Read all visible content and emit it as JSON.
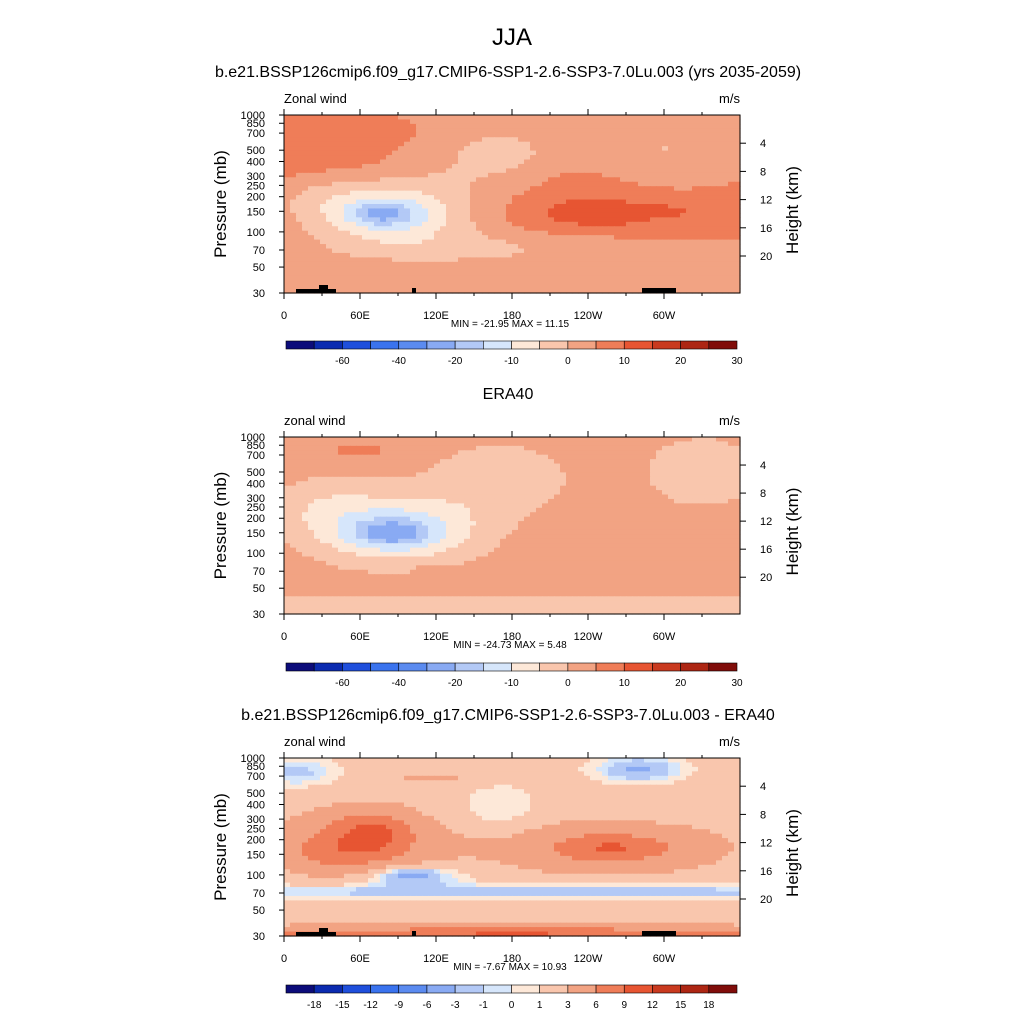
{
  "figure": {
    "title": "JJA",
    "colors": {
      "abs": [
        "#0c0c7a",
        "#0b2bb0",
        "#1f4fdc",
        "#3a73ee",
        "#5b8bf0",
        "#89aaf3",
        "#b3c9f6",
        "#d6e6fb",
        "#fde8d8",
        "#f9c6ad",
        "#f2a383",
        "#ef7d58",
        "#e75532",
        "#c93a1f",
        "#ad2613",
        "#800d0a"
      ],
      "diff": [
        "#0c0c7a",
        "#0b2bb0",
        "#1f4fdc",
        "#3a73ee",
        "#5b8bf0",
        "#89aaf3",
        "#b3c9f6",
        "#d6e6fb",
        "#fde8d8",
        "#f9c6ad",
        "#f2a383",
        "#ef7d58",
        "#e75532",
        "#c93a1f",
        "#ad2613",
        "#800d0a"
      ]
    }
  },
  "chart_data": [
    {
      "type": "heatmap",
      "title": "b.e21.BSSP126cmip6.f09_g17.CMIP6-SSP1-2.6-SSP3-7.0Lu.003 (yrs 2035-2059)",
      "left_label": "Zonal wind",
      "units": "m/s",
      "ylabel": "Pressure (mb)",
      "ylabel_right": "Height (km)",
      "x_ticks": [
        "0",
        "60E",
        "120E",
        "180",
        "120W",
        "60W"
      ],
      "x_tick_lon": [
        0,
        60,
        120,
        180,
        240,
        300
      ],
      "xlim": [
        0,
        360
      ],
      "y_ticks": [
        "30",
        "50",
        "70",
        "100",
        "150",
        "200",
        "250",
        "300",
        "400",
        "500",
        "700",
        "850",
        "1000"
      ],
      "y_tick_p": [
        30,
        50,
        70,
        100,
        150,
        200,
        250,
        300,
        400,
        500,
        700,
        850,
        1000
      ],
      "ylim": [
        1000,
        30
      ],
      "y_scale": "log",
      "height_ticks": [
        "4",
        "8",
        "12",
        "16",
        "20"
      ],
      "height_tick_km": [
        4,
        8,
        12,
        16,
        20
      ],
      "stats": "MIN = -21.95  MAX =  11.15",
      "colorbar_labels": [
        "-60",
        "-40",
        "-20",
        "-10",
        "0",
        "10",
        "20",
        "30"
      ],
      "topography": true,
      "field": {
        "background": 5,
        "blobs": [
          {
            "lon": 30,
            "p": 360,
            "rlon": 60,
            "rp": 0.55,
            "amp": 5
          },
          {
            "lon": 70,
            "p": 700,
            "rlon": 35,
            "rp": 0.22,
            "amp": 3
          },
          {
            "lon": 230,
            "p": 160,
            "rlon": 120,
            "rp": 0.55,
            "amp": 5
          },
          {
            "lon": 250,
            "p": 140,
            "rlon": 50,
            "rp": 0.28,
            "amp": 4
          },
          {
            "lon": 305,
            "p": 150,
            "rlon": 16,
            "rp": 0.12,
            "amp": 3
          },
          {
            "lon": 230,
            "p": 280,
            "rlon": 30,
            "rp": 0.16,
            "amp": 2
          },
          {
            "lon": 90,
            "p": 150,
            "rlon": 75,
            "rp": 0.7,
            "amp": -14
          },
          {
            "lon": 80,
            "p": 140,
            "rlon": 35,
            "rp": 0.35,
            "amp": -10
          },
          {
            "lon": 75,
            "p": 145,
            "rlon": 18,
            "rp": 0.17,
            "amp": -6
          },
          {
            "lon": 30,
            "p": 240,
            "rlon": 40,
            "rp": 0.55,
            "amp": -4
          },
          {
            "lon": 170,
            "p": 480,
            "rlon": 60,
            "rp": 0.7,
            "amp": -6
          },
          {
            "lon": 300,
            "p": 500,
            "rlon": 50,
            "rp": 0.8,
            "amp": -5
          },
          {
            "lon": 160,
            "p": 70,
            "rlon": 140,
            "rp": 0.35,
            "amp": -5
          }
        ]
      }
    },
    {
      "type": "heatmap",
      "title": "ERA40",
      "left_label": "zonal wind",
      "units": "m/s",
      "ylabel": "Pressure (mb)",
      "ylabel_right": "Height (km)",
      "x_ticks": [
        "0",
        "60E",
        "120E",
        "180",
        "120W",
        "60W"
      ],
      "x_tick_lon": [
        0,
        60,
        120,
        180,
        240,
        300
      ],
      "xlim": [
        0,
        360
      ],
      "y_ticks": [
        "30",
        "50",
        "70",
        "100",
        "150",
        "200",
        "250",
        "300",
        "400",
        "500",
        "700",
        "850",
        "1000"
      ],
      "y_tick_p": [
        30,
        50,
        70,
        100,
        150,
        200,
        250,
        300,
        400,
        500,
        700,
        850,
        1000
      ],
      "ylim": [
        1000,
        30
      ],
      "y_scale": "log",
      "height_ticks": [
        "4",
        "8",
        "12",
        "16",
        "20"
      ],
      "height_tick_km": [
        4,
        8,
        12,
        16,
        20
      ],
      "stats": "MIN = -24.73  MAX =   5.48",
      "colorbar_labels": [
        "-60",
        "-40",
        "-20",
        "-10",
        "0",
        "10",
        "20",
        "30"
      ],
      "topography": false,
      "field": {
        "background": 3,
        "blobs": [
          {
            "lon": 180,
            "p": 35,
            "rlon": 400,
            "rp": 0.25,
            "amp": -6
          },
          {
            "lon": 90,
            "p": 160,
            "rlon": 70,
            "rp": 0.7,
            "amp": -14
          },
          {
            "lon": 85,
            "p": 150,
            "rlon": 35,
            "rp": 0.33,
            "amp": -10
          },
          {
            "lon": 85,
            "p": 150,
            "rlon": 20,
            "rp": 0.15,
            "amp": -8
          },
          {
            "lon": 30,
            "p": 260,
            "rlon": 45,
            "rp": 0.6,
            "amp": -5
          },
          {
            "lon": 170,
            "p": 450,
            "rlon": 60,
            "rp": 0.75,
            "amp": -6
          },
          {
            "lon": 330,
            "p": 500,
            "rlon": 50,
            "rp": 0.8,
            "amp": -6
          },
          {
            "lon": 240,
            "p": 110,
            "rlon": 60,
            "rp": 0.45,
            "amp": 2
          },
          {
            "lon": 60,
            "p": 750,
            "rlon": 40,
            "rp": 0.25,
            "amp": 3
          },
          {
            "lon": 120,
            "p": 75,
            "rlon": 25,
            "rp": 0.07,
            "amp": 2
          }
        ]
      }
    },
    {
      "type": "heatmap",
      "title": "b.e21.BSSP126cmip6.f09_g17.CMIP6-SSP1-2.6-SSP3-7.0Lu.003 - ERA40",
      "left_label": "zonal wind",
      "units": "m/s",
      "ylabel": "Pressure (mb)",
      "ylabel_right": "Height (km)",
      "x_ticks": [
        "0",
        "60E",
        "120E",
        "180",
        "120W",
        "60W"
      ],
      "x_tick_lon": [
        0,
        60,
        120,
        180,
        240,
        300
      ],
      "xlim": [
        0,
        360
      ],
      "y_ticks": [
        "30",
        "50",
        "70",
        "100",
        "150",
        "200",
        "250",
        "300",
        "400",
        "500",
        "700",
        "850",
        "1000"
      ],
      "y_tick_p": [
        30,
        50,
        70,
        100,
        150,
        200,
        250,
        300,
        400,
        500,
        700,
        850,
        1000
      ],
      "ylim": [
        1000,
        30
      ],
      "y_scale": "log",
      "height_ticks": [
        "4",
        "8",
        "12",
        "16",
        "20"
      ],
      "height_tick_km": [
        4,
        8,
        12,
        16,
        20
      ],
      "stats": "MIN =  -7.67  MAX =  10.93",
      "colorbar_labels": [
        "-18",
        "-15",
        "-12",
        "-9",
        "-6",
        "-3",
        "-1",
        "0",
        "1",
        "3",
        "6",
        "9",
        "12",
        "15",
        "18"
      ],
      "topography": true,
      "field": {
        "background": 1.5,
        "blobs": [
          {
            "lon": 180,
            "p": 30,
            "rlon": 400,
            "rp": 0.18,
            "amp": 8
          },
          {
            "lon": 180,
            "p": 72,
            "rlon": 400,
            "rp": 0.13,
            "amp": -3.5
          },
          {
            "lon": 100,
            "p": 95,
            "rlon": 40,
            "rp": 0.25,
            "amp": -4
          },
          {
            "lon": 100,
            "p": 100,
            "rlon": 20,
            "rp": 0.12,
            "amp": -3
          },
          {
            "lon": 60,
            "p": 190,
            "rlon": 60,
            "rp": 0.65,
            "amp": 6
          },
          {
            "lon": 70,
            "p": 230,
            "rlon": 25,
            "rp": 0.4,
            "amp": 4
          },
          {
            "lon": 30,
            "p": 150,
            "rlon": 30,
            "rp": 0.3,
            "amp": 2
          },
          {
            "lon": 255,
            "p": 170,
            "rlon": 90,
            "rp": 0.5,
            "amp": 5
          },
          {
            "lon": 260,
            "p": 170,
            "rlon": 35,
            "rp": 0.22,
            "amp": 3
          },
          {
            "lon": 170,
            "p": 350,
            "rlon": 30,
            "rp": 0.5,
            "amp": -1.5
          },
          {
            "lon": 10,
            "p": 750,
            "rlon": 30,
            "rp": 0.25,
            "amp": -3
          },
          {
            "lon": 280,
            "p": 800,
            "rlon": 30,
            "rp": 0.22,
            "amp": -5
          },
          {
            "lon": 120,
            "p": 680,
            "rlon": 40,
            "rp": 0.12,
            "amp": 2
          }
        ]
      }
    }
  ]
}
